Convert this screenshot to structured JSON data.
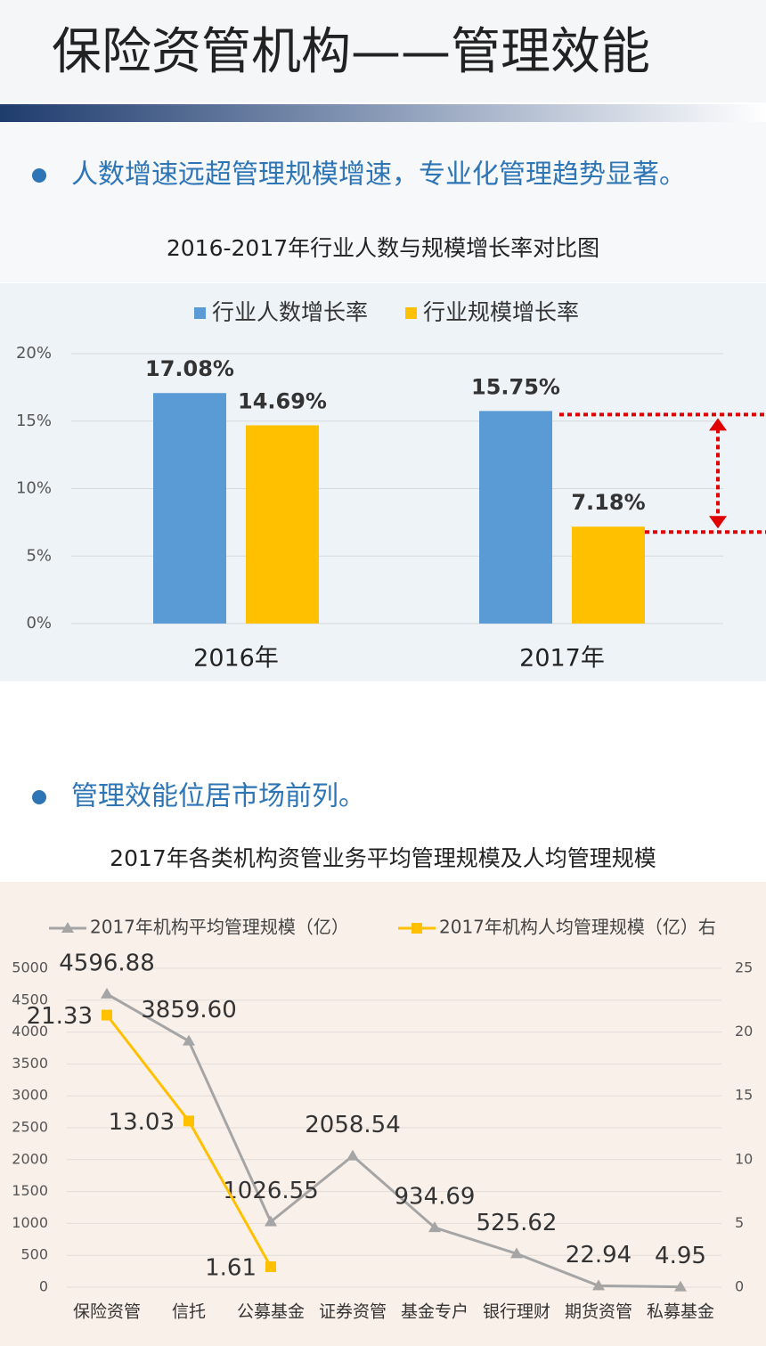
{
  "title": "保险资管机构——管理效能",
  "bullets": [
    "人数增速远超管理规模增速，专业化管理趋势显著。",
    "管理效能位居市场前列。"
  ],
  "chart_data": [
    {
      "type": "bar",
      "title": "2016-2017年行业人数与规模增长率对比图",
      "categories": [
        "2016年",
        "2017年"
      ],
      "series": [
        {
          "name": "行业人数增长率",
          "color": "#5b9bd5",
          "values": [
            17.08,
            15.75
          ],
          "value_labels": [
            "17.08%",
            "15.75%"
          ]
        },
        {
          "name": "行业规模增长率",
          "color": "#ffc000",
          "values": [
            14.69,
            7.18
          ],
          "value_labels": [
            "14.69%",
            "7.18%"
          ]
        }
      ],
      "ylim": [
        0,
        20
      ],
      "yticks": [
        {
          "value": 0,
          "label": "0%"
        },
        {
          "value": 5,
          "label": "5%"
        },
        {
          "value": 10,
          "label": "10%"
        },
        {
          "value": 15,
          "label": "15%"
        },
        {
          "value": 20,
          "label": "20%"
        }
      ],
      "grid": true,
      "legend": "top"
    },
    {
      "type": "line",
      "title": "2017年各类机构资管业务平均管理规模及人均管理规模",
      "categories": [
        "保险资管",
        "信托",
        "公募基金",
        "证券资管",
        "基金专户",
        "银行理财",
        "期货资管",
        "私募基金"
      ],
      "series": [
        {
          "name": "2017年机构平均管理规模（亿）",
          "color": "#a5a5a5",
          "values": [
            4596.88,
            3859.6,
            1026.55,
            2058.54,
            934.69,
            525.62,
            22.94,
            4.95
          ],
          "value_labels": [
            "4596.88",
            "3859.60",
            "1026.55",
            "2058.54",
            "934.69",
            "525.62",
            "22.94",
            "4.95"
          ]
        },
        {
          "name": "2017年机构人均管理规模（亿）右",
          "color": "#ffc000",
          "axis": "y2",
          "values": [
            21.33,
            13.03,
            1.61,
            null,
            null,
            null,
            null,
            null
          ]
        }
      ],
      "ylim": [
        0,
        5000
      ],
      "yticks": [
        0,
        500,
        1000,
        1500,
        2000,
        2500,
        3000,
        3500,
        4000,
        4500,
        5000
      ],
      "y2lim": [
        0,
        25
      ],
      "y2ticks": [
        0,
        5,
        10,
        15,
        20,
        25
      ],
      "grid": true,
      "legend": "top"
    }
  ]
}
